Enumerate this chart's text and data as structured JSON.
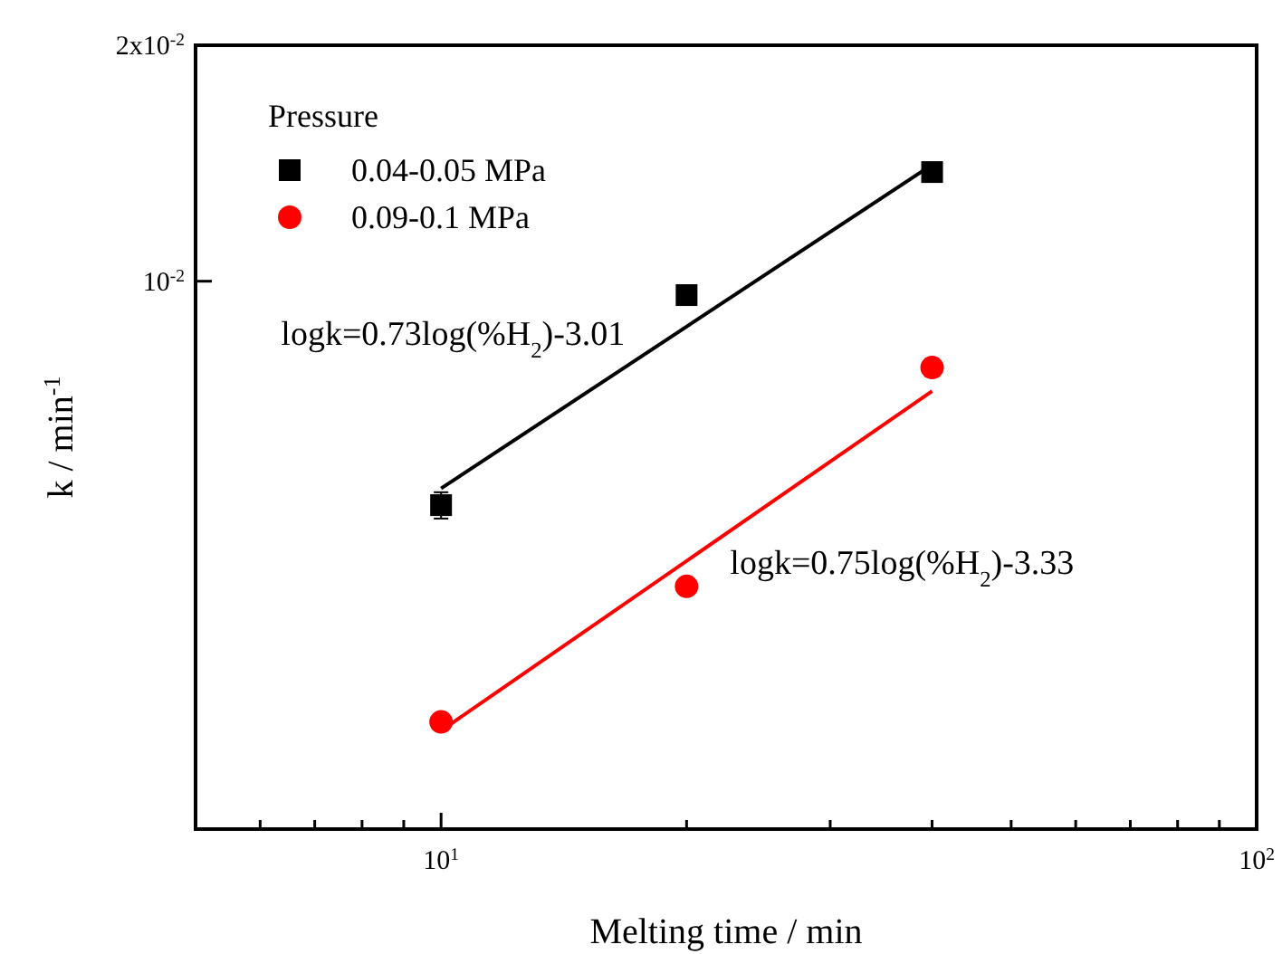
{
  "chart_data": {
    "type": "scatter",
    "xlabel": "Melting time / min",
    "ylabel": "k / min$^{-1}$",
    "log": "xy",
    "xlim": [
      5,
      100
    ],
    "ylim": [
      0.002,
      0.02
    ],
    "xticks": [
      {
        "value": 6,
        "label": null
      },
      {
        "value": 7,
        "label": null
      },
      {
        "value": 8,
        "label": null
      },
      {
        "value": 9,
        "label": null
      },
      {
        "value": 10,
        "label": "10$^{1}$"
      },
      {
        "value": 20,
        "label": null
      },
      {
        "value": 30,
        "label": null
      },
      {
        "value": 40,
        "label": null
      },
      {
        "value": 50,
        "label": null
      },
      {
        "value": 60,
        "label": null
      },
      {
        "value": 70,
        "label": null
      },
      {
        "value": 80,
        "label": null
      },
      {
        "value": 90,
        "label": null
      },
      {
        "value": 100,
        "label": "10$^{2}$"
      }
    ],
    "yticks": [
      {
        "value": 0.01,
        "label": "10$^{-2}$"
      },
      {
        "value": 0.02,
        "label": "2x10$^{-2}$"
      }
    ],
    "legend": "top left",
    "legend_title": "Pressure",
    "grid": false,
    "series": [
      {
        "name": "0.04-0.05 MPa",
        "marker": "square",
        "color": "#000000",
        "x": [
          10,
          20,
          40
        ],
        "values": [
          0.00518,
          0.0096,
          0.01378
        ],
        "errors": [
          0.0002,
          null,
          null
        ]
      },
      {
        "name": "0.09-0.1 MPa",
        "marker": "circle",
        "color": "#ff0000",
        "x": [
          10,
          20,
          40
        ],
        "values": [
          0.00274,
          0.00408,
          0.00776
        ],
        "errors": [
          null,
          null,
          0.0002
        ]
      },
      {
        "type": "line",
        "color": "#000000",
        "x": [
          10,
          40
        ],
        "values": [
          0.00544,
          0.01408
        ]
      },
      {
        "type": "line",
        "color": "#ff0000",
        "x": [
          10,
          40
        ],
        "values": [
          0.00267,
          0.00724
        ]
      }
    ],
    "annotations": [
      "logk=0.73log(%H$_{2}$)-3.01",
      "logk=0.75log(%H$_{2}$)-3.33"
    ]
  }
}
